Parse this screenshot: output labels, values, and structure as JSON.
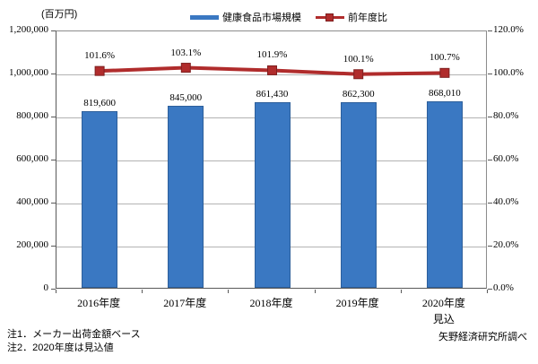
{
  "chart_data": {
    "type": "combo",
    "unit_label": "(百万円)",
    "categories": [
      "2016年度",
      "2017年度",
      "2018年度",
      "2019年度",
      "2020年度"
    ],
    "category_sublabels": [
      "",
      "",
      "",
      "",
      "見込"
    ],
    "series": [
      {
        "name": "健康食品市場規模",
        "type": "bar",
        "values": [
          819600,
          845000,
          861430,
          862300,
          868010
        ],
        "labels": [
          "819,600",
          "845,000",
          "861,430",
          "862,300",
          "868,010"
        ],
        "color": "#3a78c2",
        "border_color": "#2d5f9b",
        "axis": "left"
      },
      {
        "name": "前年度比",
        "type": "line",
        "values": [
          101.6,
          103.1,
          101.9,
          100.1,
          100.7
        ],
        "labels": [
          "101.6%",
          "103.1%",
          "101.9%",
          "100.1%",
          "100.7%"
        ],
        "color": "#b02c2c",
        "marker_border_color": "#7e1f1f",
        "axis": "right"
      }
    ],
    "left_axis": {
      "min": 0,
      "max": 1200000,
      "ticks": [
        "1,200,000",
        "1,000,000",
        "800,000",
        "600,000",
        "400,000",
        "200,000",
        "0"
      ]
    },
    "right_axis": {
      "min": 0,
      "max": 120,
      "ticks": [
        "120.0%",
        "100.0%",
        "80.0%",
        "60.0%",
        "40.0%",
        "20.0%",
        "0.0%"
      ]
    },
    "grid": true,
    "legend_position": "top"
  },
  "notes": [
    "注1．メーカー出荷金額ベース",
    "注2．2020年度は見込値"
  ],
  "source": "矢野経済研究所調べ"
}
